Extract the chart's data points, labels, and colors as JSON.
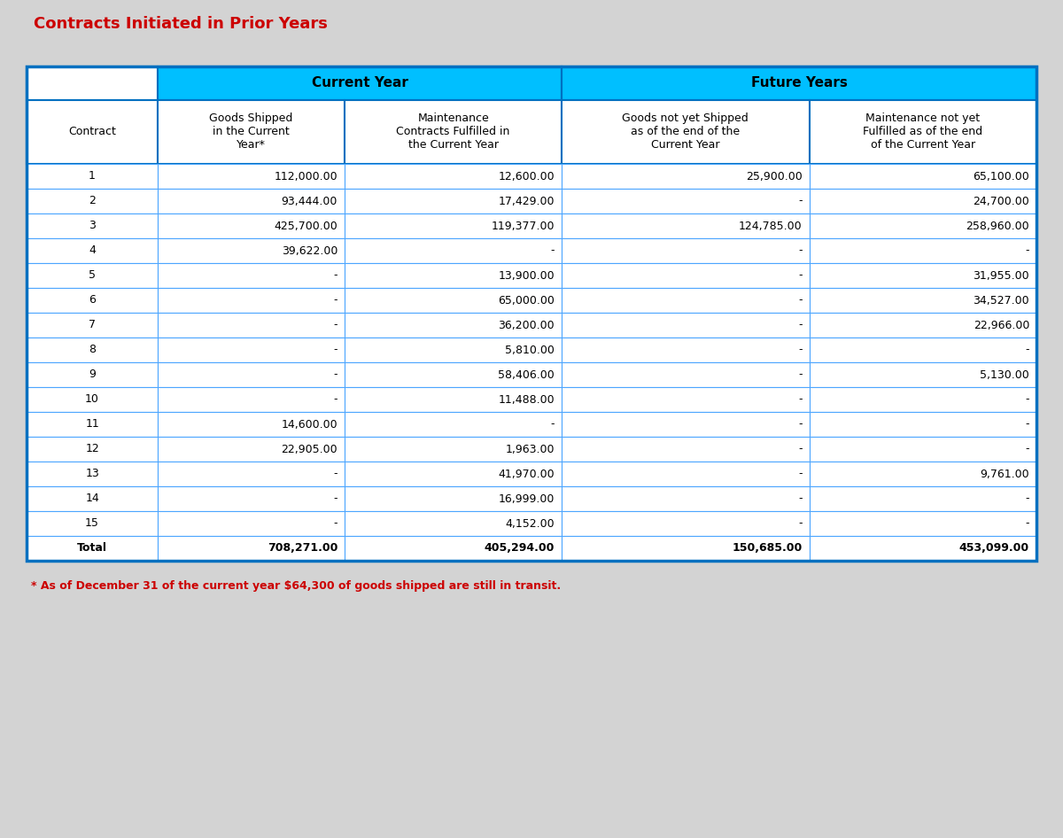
{
  "title": "Contracts Initiated in Prior Years",
  "title_color": "#CC0000",
  "header1_label": "Current Year",
  "header2_label": "Future Years",
  "col_headers": [
    "Contract",
    "Goods Shipped\nin the Current\nYear*",
    "Maintenance\nContracts Fulfilled in\nthe Current Year",
    "Goods not yet Shipped\nas of the end of the\nCurrent Year",
    "Maintenance not yet\nFulfilled as of the end\nof the Current Year"
  ],
  "rows": [
    [
      "1",
      "112,000.00",
      "12,600.00",
      "25,900.00",
      "65,100.00"
    ],
    [
      "2",
      "93,444.00",
      "17,429.00",
      "-",
      "24,700.00"
    ],
    [
      "3",
      "425,700.00",
      "119,377.00",
      "124,785.00",
      "258,960.00"
    ],
    [
      "4",
      "39,622.00",
      "-",
      "-",
      "-"
    ],
    [
      "5",
      "-",
      "13,900.00",
      "-",
      "31,955.00"
    ],
    [
      "6",
      "-",
      "65,000.00",
      "-",
      "34,527.00"
    ],
    [
      "7",
      "-",
      "36,200.00",
      "-",
      "22,966.00"
    ],
    [
      "8",
      "-",
      "5,810.00",
      "-",
      "-"
    ],
    [
      "9",
      "-",
      "58,406.00",
      "-",
      "5,130.00"
    ],
    [
      "10",
      "-",
      "11,488.00",
      "-",
      "-"
    ],
    [
      "11",
      "14,600.00",
      "-",
      "-",
      "-"
    ],
    [
      "12",
      "22,905.00",
      "1,963.00",
      "-",
      "-"
    ],
    [
      "13",
      "-",
      "41,970.00",
      "-",
      "9,761.00"
    ],
    [
      "14",
      "-",
      "16,999.00",
      "-",
      "-"
    ],
    [
      "15",
      "-",
      "4,152.00",
      "-",
      "-"
    ],
    [
      "Total",
      "708,271.00",
      "405,294.00",
      "150,685.00",
      "453,099.00"
    ]
  ],
  "footnote": "* As of December 31 of the current year $64,300 of goods shipped are still in transit.",
  "header_bg": "#00BFFF",
  "header_text": "#000000",
  "col_header_bg": "#FFFFFF",
  "row_odd_bg": "#FFFFFF",
  "row_even_bg": "#E8F4FF",
  "total_bg": "#FFFFFF",
  "outer_border_color": "#0070C0",
  "inner_border_color": "#4DA6FF",
  "grid_color": "#4DA6FF",
  "title_fontsize": 13,
  "header_fontsize": 11,
  "col_header_fontsize": 9,
  "data_fontsize": 9,
  "footnote_fontsize": 9,
  "footnote_color": "#CC0000"
}
